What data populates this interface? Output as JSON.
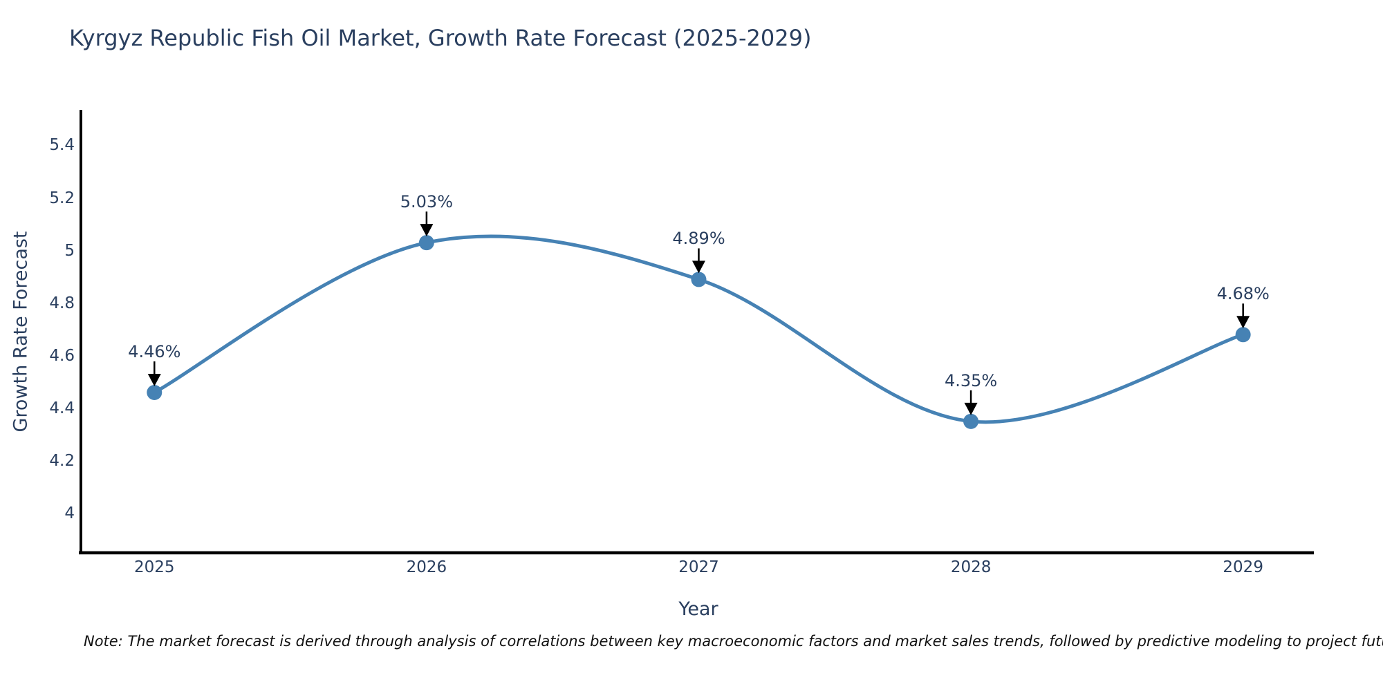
{
  "note": "Note: The market forecast is derived through analysis of correlations between key macroeconomic factors and market sales trends, followed by predictive modeling to project future sales",
  "chart_data": {
    "type": "line",
    "title": "Kyrgyz Republic Fish Oil Market, Growth Rate Forecast (2025-2029)",
    "xlabel": "Year",
    "ylabel": "Growth Rate Forecast",
    "x": [
      2025,
      2026,
      2027,
      2028,
      2029
    ],
    "x_tick_labels": [
      "2025",
      "2026",
      "2027",
      "2028",
      "2029"
    ],
    "values": [
      4.46,
      5.03,
      4.89,
      4.35,
      4.68
    ],
    "point_labels": [
      "4.46%",
      "5.03%",
      "4.89%",
      "4.35%",
      "4.68%"
    ],
    "y_ticks": [
      4,
      4.2,
      4.4,
      4.6,
      4.8,
      5,
      5.2,
      5.4
    ],
    "y_tick_labels": [
      "4",
      "4.2",
      "4.4",
      "4.6",
      "4.8",
      "5",
      "5.2",
      "5.4"
    ],
    "xlim": [
      2024.73,
      2029.26
    ],
    "ylim": [
      3.85,
      5.53
    ],
    "grid": false,
    "legend": "none",
    "line_shape": "spline",
    "colors": {
      "line": "#4682b4",
      "marker": "#4682b4",
      "text": "#2a3f5f",
      "axis": "#000000",
      "annotation_arrow": "#000000",
      "background": "#ffffff"
    }
  }
}
